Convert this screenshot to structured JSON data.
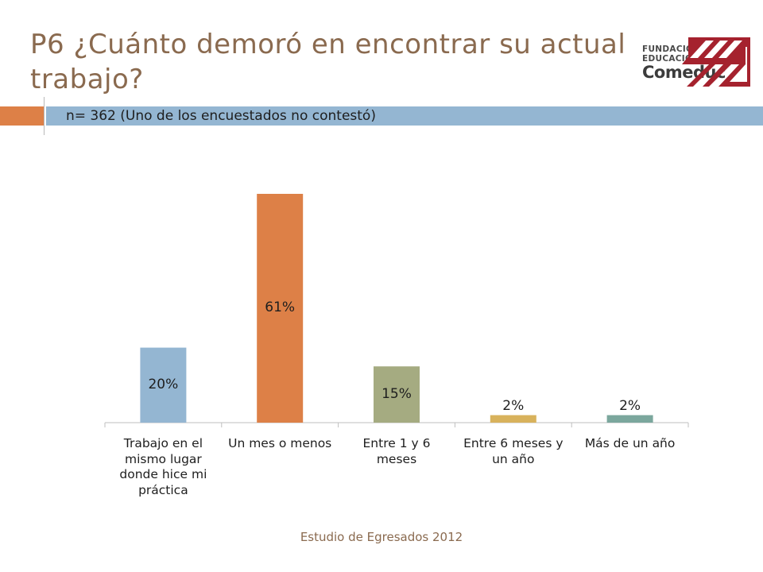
{
  "slide": {
    "title": "P6 ¿Cuánto demoró en encontrar su actual trabajo?",
    "subtitle": "n= 362 (Uno de los encuestados no contestó)",
    "footer": "Estudio de Egresados 2012",
    "logo": {
      "line1": "FUNDACIÓN",
      "line2": "EDUCACIONAL",
      "line3": "Comeduc"
    }
  },
  "colors": {
    "accent_orange": "#dd8047",
    "accent_blue": "#94b6d2",
    "title_brown": "#8a6a4f",
    "logo_red": "#a5222e"
  },
  "chart_data": {
    "type": "bar",
    "categories": [
      "Trabajo en el mismo lugar donde hice mi práctica",
      "Un mes o menos",
      "Entre 1 y 6 meses",
      "Entre 6 meses y un año",
      "Más de un año"
    ],
    "category_lines": [
      [
        "Trabajo en el",
        "mismo lugar",
        "donde hice mi",
        "práctica"
      ],
      [
        "Un mes o menos"
      ],
      [
        "Entre 1 y 6",
        "meses"
      ],
      [
        "Entre 6 meses y",
        "un año"
      ],
      [
        "Más de un año"
      ]
    ],
    "values": [
      20,
      61,
      15,
      2,
      2
    ],
    "data_labels": [
      "20%",
      "61%",
      "15%",
      "2%",
      "2%"
    ],
    "bar_colors": [
      "#94b6d2",
      "#dd8047",
      "#a5ab81",
      "#d8b25c",
      "#7ba79d"
    ],
    "ylim": [
      0,
      65
    ],
    "grid": false,
    "legend": "none"
  }
}
